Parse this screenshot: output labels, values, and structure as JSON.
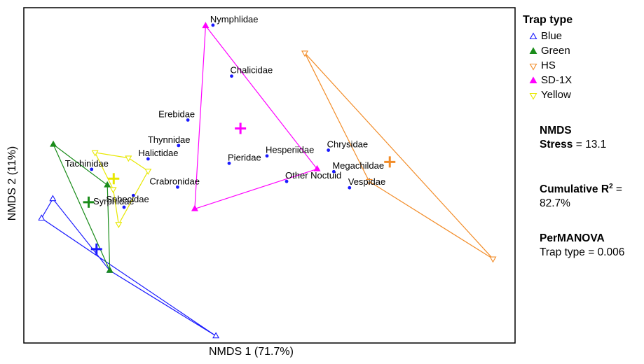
{
  "chart_data": {
    "type": "scatter",
    "xlabel": "NMDS 1 (71.7%)",
    "ylabel": "NMDS 2 (11%)",
    "xlim": [
      0,
      100
    ],
    "ylim": [
      0,
      100
    ],
    "grid": false,
    "legend_position": "right",
    "legend_title": "Trap type",
    "series": [
      {
        "name": "Blue",
        "color": "#1a1aff",
        "marker": "triangle-up-open",
        "hull": [
          [
            5.9,
            43.0
          ],
          [
            3.6,
            37.2
          ],
          [
            39.1,
            2.1
          ],
          [
            17.5,
            21.6
          ]
        ],
        "centroid": [
          14.8,
          28.0
        ]
      },
      {
        "name": "Green",
        "color": "#1a8c1a",
        "marker": "triangle-up-filled",
        "hull": [
          [
            6.0,
            59.2
          ],
          [
            17.0,
            47.1
          ],
          [
            17.5,
            21.6
          ]
        ],
        "centroid": [
          13.2,
          42.0
        ]
      },
      {
        "name": "HS",
        "color": "#f28c28",
        "marker": "triangle-down-open",
        "hull": [
          [
            57.2,
            86.5
          ],
          [
            70.3,
            48.2
          ],
          [
            95.5,
            25.1
          ]
        ],
        "centroid": [
          74.5,
          54.0
        ]
      },
      {
        "name": "SD-1X",
        "color": "#ff00ff",
        "marker": "triangle-up-filled",
        "hull": [
          [
            37.0,
            94.6
          ],
          [
            59.7,
            51.9
          ],
          [
            34.8,
            40.0
          ]
        ],
        "centroid": [
          44.1,
          64.0
        ]
      },
      {
        "name": "Yellow",
        "color": "#e8e800",
        "marker": "triangle-down-open",
        "hull": [
          [
            14.5,
            56.8
          ],
          [
            18.2,
            45.8
          ],
          [
            19.3,
            35.4
          ],
          [
            25.3,
            51.3
          ],
          [
            21.3,
            55.2
          ]
        ],
        "centroid": [
          18.3,
          49.0
        ]
      }
    ],
    "points": [
      {
        "label": "Nymphlidae",
        "x": 38.5,
        "y": 94.8
      },
      {
        "label": "Chalicidae",
        "x": 42.3,
        "y": 79.6
      },
      {
        "label": "Erebidae",
        "x": 33.4,
        "y": 66.5
      },
      {
        "label": "Thynnidae",
        "x": 31.5,
        "y": 58.9
      },
      {
        "label": "Halictidae",
        "x": 25.3,
        "y": 54.9
      },
      {
        "label": "Tachinidae",
        "x": 13.8,
        "y": 51.8
      },
      {
        "label": "Sphecidae",
        "x": 22.3,
        "y": 44.0
      },
      {
        "label": "Syrphidae",
        "x": 20.4,
        "y": 40.5
      },
      {
        "label": "Crabronidae",
        "x": 31.3,
        "y": 46.5
      },
      {
        "label": "Pieridae",
        "x": 41.8,
        "y": 53.6
      },
      {
        "label": "Hesperiidae",
        "x": 49.5,
        "y": 55.8
      },
      {
        "label": "Chrysidae",
        "x": 62.0,
        "y": 57.5
      },
      {
        "label": "Megachildae",
        "x": 63.1,
        "y": 51.1
      },
      {
        "label": "Other Noctuid",
        "x": 53.5,
        "y": 48.2
      },
      {
        "label": "Vespidae",
        "x": 66.3,
        "y": 46.3
      }
    ]
  },
  "legend": {
    "title": "Trap type",
    "items": [
      "Blue",
      "Green",
      "HS",
      "SD-1X",
      "Yellow"
    ]
  },
  "stats": {
    "nmds_title": "NMDS",
    "stress_label": "Stress",
    "stress_value": "= 13.1",
    "cumulative_label": "Cumulative R",
    "cumulative_sup": "2",
    "cumulative_eq": " =",
    "cumulative_value": "82.7%",
    "permanova_title": "PerMANOVA",
    "permanova_text": "Trap type = 0.006"
  }
}
